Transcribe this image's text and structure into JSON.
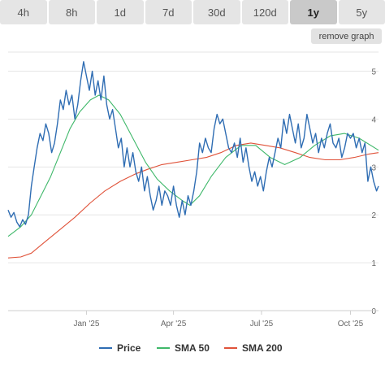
{
  "ranges": {
    "items": [
      {
        "label": "4h"
      },
      {
        "label": "8h"
      },
      {
        "label": "1d"
      },
      {
        "label": "7d"
      },
      {
        "label": "30d"
      },
      {
        "label": "120d"
      },
      {
        "label": "1y"
      },
      {
        "label": "5y"
      }
    ],
    "active_index": 6
  },
  "controls": {
    "remove_label": "remove graph"
  },
  "chart_data": {
    "type": "line",
    "title": "",
    "xlabel": "",
    "ylabel": "",
    "x_range": [
      "2024-10-12",
      "2025-10-30"
    ],
    "ylim": [
      0,
      5.4
    ],
    "y_ticks": [
      0,
      1,
      2,
      3,
      4,
      5
    ],
    "x_ticks": [
      {
        "date": "2025-01-01",
        "label": "Jan '25"
      },
      {
        "date": "2025-04-01",
        "label": "Apr '25"
      },
      {
        "date": "2025-07-01",
        "label": "Jul '25"
      },
      {
        "date": "2025-10-01",
        "label": "Oct '25"
      }
    ],
    "grid": true,
    "legend": "bottom",
    "series": [
      {
        "name": "Price",
        "color": "#2f6db3",
        "points": [
          [
            "2024-10-12",
            2.1
          ],
          [
            "2024-10-15",
            1.95
          ],
          [
            "2024-10-18",
            2.05
          ],
          [
            "2024-10-21",
            1.85
          ],
          [
            "2024-10-24",
            1.75
          ],
          [
            "2024-10-27",
            1.9
          ],
          [
            "2024-10-30",
            1.8
          ],
          [
            "2024-11-02",
            2.0
          ],
          [
            "2024-11-05",
            2.6
          ],
          [
            "2024-11-08",
            3.0
          ],
          [
            "2024-11-11",
            3.4
          ],
          [
            "2024-11-14",
            3.7
          ],
          [
            "2024-11-17",
            3.55
          ],
          [
            "2024-11-20",
            3.9
          ],
          [
            "2024-11-23",
            3.7
          ],
          [
            "2024-11-26",
            3.3
          ],
          [
            "2024-11-29",
            3.5
          ],
          [
            "2024-12-02",
            3.9
          ],
          [
            "2024-12-05",
            4.4
          ],
          [
            "2024-12-08",
            4.2
          ],
          [
            "2024-12-11",
            4.6
          ],
          [
            "2024-12-14",
            4.3
          ],
          [
            "2024-12-17",
            4.5
          ],
          [
            "2024-12-20",
            4.0
          ],
          [
            "2024-12-23",
            4.3
          ],
          [
            "2024-12-26",
            4.8
          ],
          [
            "2024-12-29",
            5.2
          ],
          [
            "2025-01-01",
            4.9
          ],
          [
            "2025-01-04",
            4.6
          ],
          [
            "2025-01-07",
            5.0
          ],
          [
            "2025-01-10",
            4.5
          ],
          [
            "2025-01-13",
            4.8
          ],
          [
            "2025-01-16",
            4.4
          ],
          [
            "2025-01-19",
            4.9
          ],
          [
            "2025-01-22",
            4.3
          ],
          [
            "2025-01-25",
            4.0
          ],
          [
            "2025-01-28",
            4.2
          ],
          [
            "2025-01-31",
            3.8
          ],
          [
            "2025-02-03",
            3.4
          ],
          [
            "2025-02-06",
            3.6
          ],
          [
            "2025-02-09",
            3.0
          ],
          [
            "2025-02-12",
            3.4
          ],
          [
            "2025-02-15",
            3.0
          ],
          [
            "2025-02-18",
            3.3
          ],
          [
            "2025-02-21",
            2.9
          ],
          [
            "2025-02-24",
            2.7
          ],
          [
            "2025-02-27",
            3.0
          ],
          [
            "2025-03-02",
            2.5
          ],
          [
            "2025-03-05",
            2.8
          ],
          [
            "2025-03-08",
            2.4
          ],
          [
            "2025-03-11",
            2.1
          ],
          [
            "2025-03-14",
            2.3
          ],
          [
            "2025-03-17",
            2.6
          ],
          [
            "2025-03-20",
            2.2
          ],
          [
            "2025-03-23",
            2.5
          ],
          [
            "2025-03-26",
            2.4
          ],
          [
            "2025-03-29",
            2.2
          ],
          [
            "2025-04-01",
            2.6
          ],
          [
            "2025-04-04",
            2.2
          ],
          [
            "2025-04-07",
            1.95
          ],
          [
            "2025-04-10",
            2.3
          ],
          [
            "2025-04-13",
            2.0
          ],
          [
            "2025-04-16",
            2.4
          ],
          [
            "2025-04-19",
            2.2
          ],
          [
            "2025-04-22",
            2.5
          ],
          [
            "2025-04-25",
            2.9
          ],
          [
            "2025-04-28",
            3.5
          ],
          [
            "2025-05-01",
            3.3
          ],
          [
            "2025-05-04",
            3.6
          ],
          [
            "2025-05-07",
            3.4
          ],
          [
            "2025-05-10",
            3.3
          ],
          [
            "2025-05-13",
            3.8
          ],
          [
            "2025-05-16",
            4.1
          ],
          [
            "2025-05-19",
            3.9
          ],
          [
            "2025-05-22",
            4.0
          ],
          [
            "2025-05-25",
            3.7
          ],
          [
            "2025-05-28",
            3.4
          ],
          [
            "2025-05-31",
            3.3
          ],
          [
            "2025-06-03",
            3.5
          ],
          [
            "2025-06-06",
            3.2
          ],
          [
            "2025-06-09",
            3.6
          ],
          [
            "2025-06-12",
            3.1
          ],
          [
            "2025-06-15",
            3.4
          ],
          [
            "2025-06-18",
            3.0
          ],
          [
            "2025-06-21",
            2.7
          ],
          [
            "2025-06-24",
            2.9
          ],
          [
            "2025-06-27",
            2.6
          ],
          [
            "2025-06-30",
            2.8
          ],
          [
            "2025-07-03",
            2.5
          ],
          [
            "2025-07-06",
            2.9
          ],
          [
            "2025-07-09",
            3.2
          ],
          [
            "2025-07-12",
            3.0
          ],
          [
            "2025-07-15",
            3.3
          ],
          [
            "2025-07-18",
            3.6
          ],
          [
            "2025-07-21",
            3.4
          ],
          [
            "2025-07-24",
            4.0
          ],
          [
            "2025-07-27",
            3.7
          ],
          [
            "2025-07-30",
            4.1
          ],
          [
            "2025-08-02",
            3.8
          ],
          [
            "2025-08-05",
            3.5
          ],
          [
            "2025-08-08",
            3.9
          ],
          [
            "2025-08-11",
            3.4
          ],
          [
            "2025-08-14",
            3.6
          ],
          [
            "2025-08-17",
            4.1
          ],
          [
            "2025-08-20",
            3.8
          ],
          [
            "2025-08-23",
            3.5
          ],
          [
            "2025-08-26",
            3.7
          ],
          [
            "2025-08-29",
            3.3
          ],
          [
            "2025-09-01",
            3.6
          ],
          [
            "2025-09-04",
            3.4
          ],
          [
            "2025-09-07",
            3.7
          ],
          [
            "2025-09-10",
            3.9
          ],
          [
            "2025-09-13",
            3.5
          ],
          [
            "2025-09-16",
            3.4
          ],
          [
            "2025-09-19",
            3.6
          ],
          [
            "2025-09-22",
            3.2
          ],
          [
            "2025-09-25",
            3.4
          ],
          [
            "2025-09-28",
            3.7
          ],
          [
            "2025-10-01",
            3.6
          ],
          [
            "2025-10-04",
            3.7
          ],
          [
            "2025-10-07",
            3.4
          ],
          [
            "2025-10-10",
            3.6
          ],
          [
            "2025-10-13",
            3.3
          ],
          [
            "2025-10-16",
            3.5
          ],
          [
            "2025-10-19",
            2.7
          ],
          [
            "2025-10-22",
            3.0
          ],
          [
            "2025-10-25",
            2.7
          ],
          [
            "2025-10-28",
            2.5
          ],
          [
            "2025-10-30",
            2.6
          ]
        ]
      },
      {
        "name": "SMA 50",
        "color": "#3fb86a",
        "points": [
          [
            "2024-10-12",
            1.55
          ],
          [
            "2024-10-25",
            1.75
          ],
          [
            "2024-11-05",
            2.0
          ],
          [
            "2024-11-15",
            2.4
          ],
          [
            "2024-11-25",
            2.8
          ],
          [
            "2024-12-05",
            3.3
          ],
          [
            "2024-12-15",
            3.8
          ],
          [
            "2024-12-25",
            4.15
          ],
          [
            "2025-01-05",
            4.4
          ],
          [
            "2025-01-14",
            4.5
          ],
          [
            "2025-01-24",
            4.4
          ],
          [
            "2025-02-05",
            4.1
          ],
          [
            "2025-02-18",
            3.6
          ],
          [
            "2025-03-03",
            3.1
          ],
          [
            "2025-03-15",
            2.75
          ],
          [
            "2025-03-28",
            2.5
          ],
          [
            "2025-04-10",
            2.3
          ],
          [
            "2025-04-18",
            2.2
          ],
          [
            "2025-04-28",
            2.4
          ],
          [
            "2025-05-10",
            2.8
          ],
          [
            "2025-05-25",
            3.2
          ],
          [
            "2025-06-10",
            3.45
          ],
          [
            "2025-06-25",
            3.45
          ],
          [
            "2025-07-10",
            3.2
          ],
          [
            "2025-07-25",
            3.05
          ],
          [
            "2025-08-10",
            3.2
          ],
          [
            "2025-08-25",
            3.45
          ],
          [
            "2025-09-10",
            3.65
          ],
          [
            "2025-09-25",
            3.7
          ],
          [
            "2025-10-10",
            3.6
          ],
          [
            "2025-10-30",
            3.35
          ]
        ]
      },
      {
        "name": "SMA 200",
        "color": "#e0533a",
        "points": [
          [
            "2024-10-12",
            1.1
          ],
          [
            "2024-10-25",
            1.12
          ],
          [
            "2024-11-05",
            1.2
          ],
          [
            "2024-11-20",
            1.45
          ],
          [
            "2024-12-05",
            1.7
          ],
          [
            "2024-12-20",
            1.95
          ],
          [
            "2025-01-05",
            2.25
          ],
          [
            "2025-01-20",
            2.5
          ],
          [
            "2025-02-05",
            2.7
          ],
          [
            "2025-02-20",
            2.85
          ],
          [
            "2025-03-05",
            2.95
          ],
          [
            "2025-03-20",
            3.05
          ],
          [
            "2025-04-05",
            3.1
          ],
          [
            "2025-04-20",
            3.15
          ],
          [
            "2025-05-05",
            3.2
          ],
          [
            "2025-05-20",
            3.3
          ],
          [
            "2025-06-05",
            3.45
          ],
          [
            "2025-06-20",
            3.5
          ],
          [
            "2025-07-05",
            3.45
          ],
          [
            "2025-07-20",
            3.4
          ],
          [
            "2025-08-05",
            3.3
          ],
          [
            "2025-08-20",
            3.2
          ],
          [
            "2025-09-05",
            3.15
          ],
          [
            "2025-09-20",
            3.15
          ],
          [
            "2025-10-05",
            3.2
          ],
          [
            "2025-10-20",
            3.27
          ],
          [
            "2025-10-30",
            3.3
          ]
        ]
      }
    ]
  }
}
